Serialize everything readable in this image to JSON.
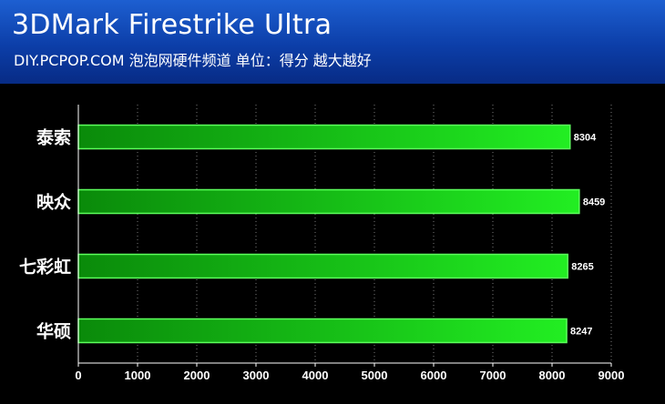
{
  "header": {
    "title": "3DMark Firestrike Ultra",
    "subtitle": "DIY.PCPOP.COM 泡泡网硬件频道 单位：得分 越大越好"
  },
  "colors": {
    "header_bg": "#0c3ea8",
    "bar_dark": "#0a8a0a",
    "bar_light": "#22ee22",
    "bar_border": "#5cff5c"
  },
  "chart_data": {
    "type": "bar",
    "orientation": "horizontal",
    "title": "3DMark Firestrike Ultra",
    "categories": [
      "泰索",
      "映众",
      "七彩虹",
      "华硕"
    ],
    "values": [
      8304,
      8459,
      8265,
      8247
    ],
    "value_labels": [
      "8304",
      "8459",
      "8265",
      "8247"
    ],
    "xlim": [
      0,
      9000
    ],
    "x_ticks": [
      "0",
      "1000",
      "2000",
      "3000",
      "4000",
      "5000",
      "6000",
      "7000",
      "8000",
      "9000"
    ],
    "grid": "vertical dotted"
  }
}
